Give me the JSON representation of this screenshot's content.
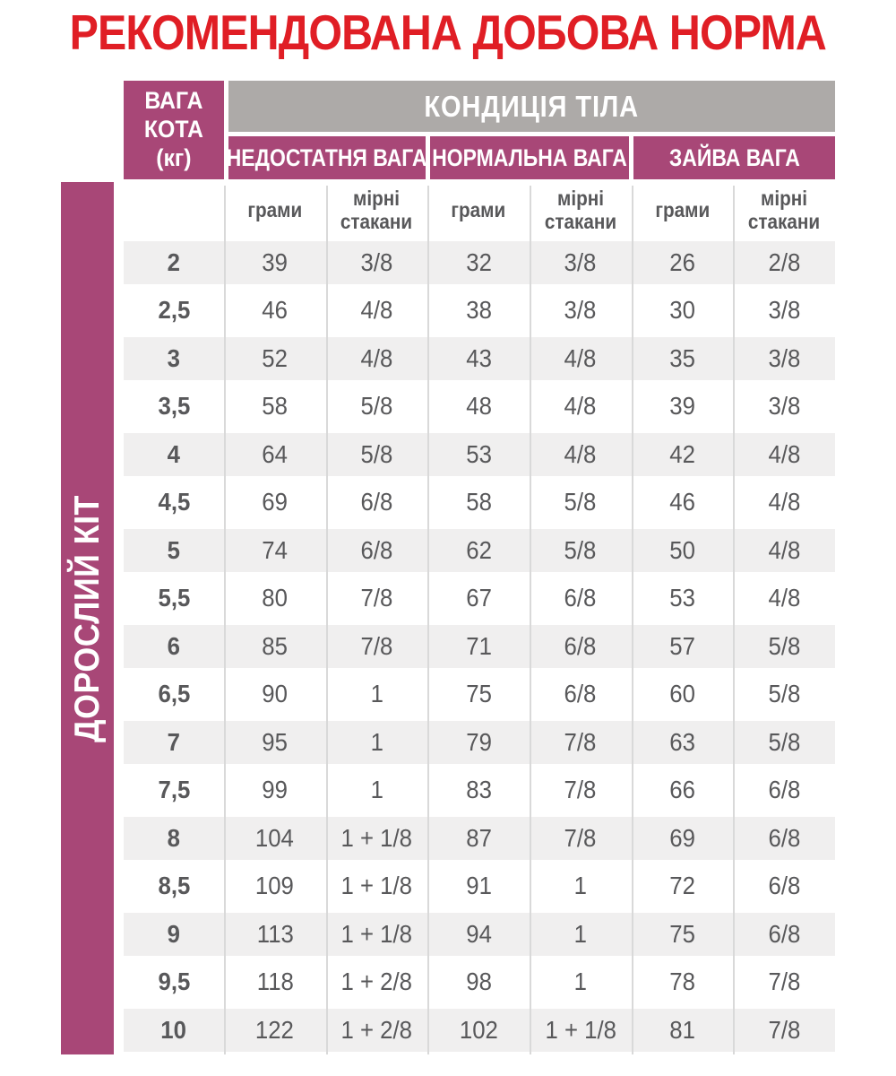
{
  "title": "РЕКОМЕНДОВАНА ДОБОВА НОРМА",
  "sidebar": {
    "label": "ДОРОСЛИЙ КІТ"
  },
  "table": {
    "weight_header": "ВАГА\nКОТА\n(кг)",
    "condition_header": "КОНДИЦІЯ ТІЛА",
    "categories": [
      "НЕДОСТАТНЯ ВАГА",
      "НОРМАЛЬНА ВАГА",
      "ЗАЙВА ВАГА"
    ],
    "unit_headers": [
      "грами",
      "мірні стакани"
    ],
    "rows": [
      {
        "weight": "2",
        "values": [
          "39",
          "3/8",
          "32",
          "3/8",
          "26",
          "2/8"
        ]
      },
      {
        "weight": "2,5",
        "values": [
          "46",
          "4/8",
          "38",
          "3/8",
          "30",
          "3/8"
        ]
      },
      {
        "weight": "3",
        "values": [
          "52",
          "4/8",
          "43",
          "4/8",
          "35",
          "3/8"
        ]
      },
      {
        "weight": "3,5",
        "values": [
          "58",
          "5/8",
          "48",
          "4/8",
          "39",
          "3/8"
        ]
      },
      {
        "weight": "4",
        "values": [
          "64",
          "5/8",
          "53",
          "4/8",
          "42",
          "4/8"
        ]
      },
      {
        "weight": "4,5",
        "values": [
          "69",
          "6/8",
          "58",
          "5/8",
          "46",
          "4/8"
        ]
      },
      {
        "weight": "5",
        "values": [
          "74",
          "6/8",
          "62",
          "5/8",
          "50",
          "4/8"
        ]
      },
      {
        "weight": "5,5",
        "values": [
          "80",
          "7/8",
          "67",
          "6/8",
          "53",
          "4/8"
        ]
      },
      {
        "weight": "6",
        "values": [
          "85",
          "7/8",
          "71",
          "6/8",
          "57",
          "5/8"
        ]
      },
      {
        "weight": "6,5",
        "values": [
          "90",
          "1",
          "75",
          "6/8",
          "60",
          "5/8"
        ]
      },
      {
        "weight": "7",
        "values": [
          "95",
          "1",
          "79",
          "7/8",
          "63",
          "5/8"
        ]
      },
      {
        "weight": "7,5",
        "values": [
          "99",
          "1",
          "83",
          "7/8",
          "66",
          "6/8"
        ]
      },
      {
        "weight": "8",
        "values": [
          "104",
          "1 + 1/8",
          "87",
          "7/8",
          "69",
          "6/8"
        ]
      },
      {
        "weight": "8,5",
        "values": [
          "109",
          "1 + 1/8",
          "91",
          "1",
          "72",
          "6/8"
        ]
      },
      {
        "weight": "9",
        "values": [
          "113",
          "1 + 1/8",
          "94",
          "1",
          "75",
          "6/8"
        ]
      },
      {
        "weight": "9,5",
        "values": [
          "118",
          "1 + 2/8",
          "98",
          "1",
          "78",
          "7/8"
        ]
      },
      {
        "weight": "10",
        "values": [
          "122",
          "1 + 2/8",
          "102",
          "1 + 1/8",
          "81",
          "7/8"
        ]
      }
    ]
  },
  "colors": {
    "title_red": "#E01E25",
    "accent_magenta": "#A84777",
    "header_gray": "#ADAAA8",
    "row_alt_gray": "#F0EFEF",
    "separator_gray": "#D9D9D9",
    "text_gray": "#58585A",
    "header_text": "#FFFFFF"
  }
}
